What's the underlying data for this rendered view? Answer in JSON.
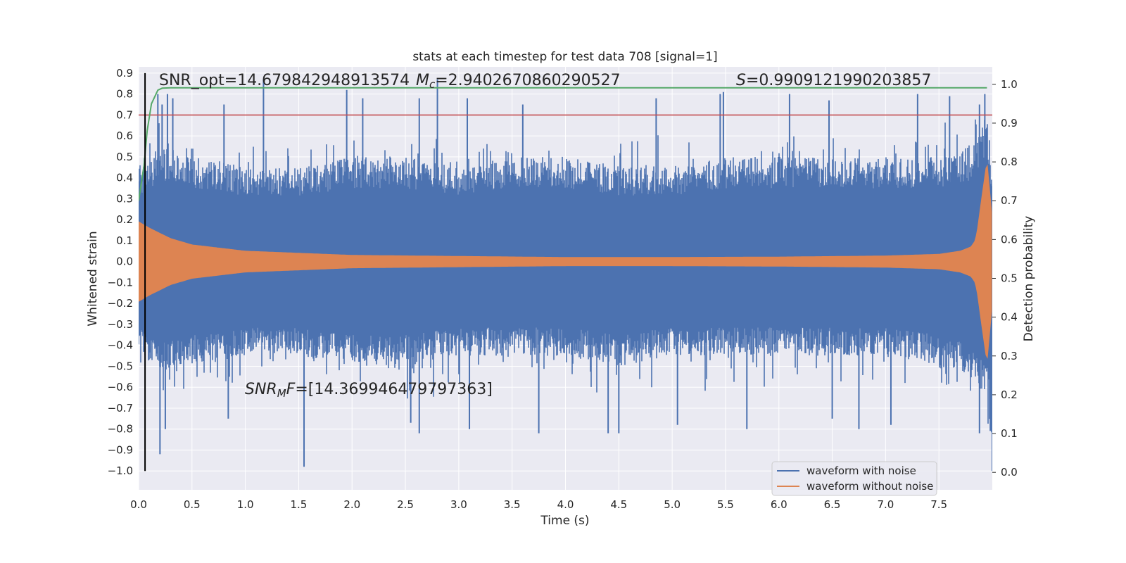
{
  "chart_data": {
    "type": "line",
    "title": "stats at each timestep for test data 708 [signal=1]",
    "xlabel": "Time (s)",
    "ylabel_left": "Whitened strain",
    "ylabel_right": "Detection probability",
    "xlim": [
      0.0,
      8.0
    ],
    "ylim_left": [
      -1.09,
      0.93
    ],
    "ylim_right": [
      -0.045,
      1.045
    ],
    "x_ticks": [
      "0.0",
      "0.5",
      "1.0",
      "1.5",
      "2.0",
      "2.5",
      "3.0",
      "3.5",
      "4.0",
      "4.5",
      "5.0",
      "5.5",
      "6.0",
      "6.5",
      "7.0",
      "7.5"
    ],
    "x_tick_values": [
      0.0,
      0.5,
      1.0,
      1.5,
      2.0,
      2.5,
      3.0,
      3.5,
      4.0,
      4.5,
      5.0,
      5.5,
      6.0,
      6.5,
      7.0,
      7.5
    ],
    "y_left_ticks": [
      "0.9",
      "0.8",
      "0.7",
      "0.6",
      "0.5",
      "0.4",
      "0.3",
      "0.2",
      "0.1",
      "0.0",
      "−0.1",
      "−0.2",
      "−0.3",
      "−0.4",
      "−0.5",
      "−0.6",
      "−0.7",
      "−0.8",
      "−0.9",
      "−1.0"
    ],
    "y_left_tick_values": [
      0.9,
      0.8,
      0.7,
      0.6,
      0.5,
      0.4,
      0.3,
      0.2,
      0.1,
      0.0,
      -0.1,
      -0.2,
      -0.3,
      -0.4,
      -0.5,
      -0.6,
      -0.7,
      -0.8,
      -0.9,
      -1.0
    ],
    "y_right_ticks": [
      "1.0",
      "0.9",
      "0.8",
      "0.7",
      "0.6",
      "0.5",
      "0.4",
      "0.3",
      "0.2",
      "0.1",
      "0.0"
    ],
    "y_right_tick_values": [
      1.0,
      0.9,
      0.8,
      0.7,
      0.6,
      0.5,
      0.4,
      0.3,
      0.2,
      0.1,
      0.0
    ],
    "grid": true,
    "legend_position": "bottom-right",
    "colors": {
      "noisy": "#4c72b0",
      "clean": "#dd8452",
      "probability": "#55a868",
      "threshold": "#c44e52",
      "marker": "#000000",
      "background": "#eaeaf2",
      "grid": "#ffffff"
    },
    "series": [
      {
        "name": "waveform with noise",
        "axis": "left",
        "envelope_x": [
          0.0,
          0.1,
          0.2,
          0.5,
          1.0,
          1.5,
          2.0,
          2.5,
          3.0,
          3.5,
          4.0,
          4.5,
          5.0,
          5.5,
          6.0,
          6.5,
          7.0,
          7.5,
          7.8,
          7.95,
          8.0
        ],
        "envelope_upper": [
          0.45,
          0.5,
          0.55,
          0.5,
          0.45,
          0.45,
          0.5,
          0.5,
          0.45,
          0.5,
          0.5,
          0.45,
          0.45,
          0.5,
          0.5,
          0.5,
          0.5,
          0.5,
          0.55,
          0.7,
          0.45
        ],
        "envelope_lower": [
          -0.45,
          -0.5,
          -0.55,
          -0.5,
          -0.45,
          -0.45,
          -0.5,
          -0.5,
          -0.45,
          -0.45,
          -0.45,
          -0.5,
          -0.45,
          -0.45,
          -0.45,
          -0.45,
          -0.45,
          -0.5,
          -0.55,
          -0.65,
          -1.0
        ],
        "peaks_x": [
          0.18,
          0.22,
          0.27,
          0.32,
          0.8,
          1.17,
          1.95,
          2.1,
          2.63,
          2.8,
          3.08,
          3.6,
          4.85,
          5.45,
          5.48,
          6.1,
          6.47,
          7.3,
          7.6,
          7.88,
          7.93
        ],
        "peaks_y": [
          0.8,
          0.75,
          0.8,
          0.78,
          0.75,
          0.87,
          0.82,
          0.78,
          0.78,
          0.87,
          0.78,
          0.75,
          0.78,
          0.8,
          0.81,
          0.8,
          0.77,
          0.8,
          0.79,
          0.75,
          0.8
        ],
        "troughs_x": [
          0.2,
          0.25,
          0.84,
          1.55,
          2.55,
          2.63,
          3.1,
          3.75,
          4.4,
          4.5,
          5.05,
          5.7,
          6.5,
          6.75,
          7.05,
          7.88,
          8.0
        ],
        "troughs_y": [
          -0.92,
          -0.8,
          -0.75,
          -0.98,
          -0.77,
          -0.82,
          -0.8,
          -0.82,
          -0.82,
          -0.82,
          -0.78,
          -0.8,
          -0.75,
          -0.8,
          -0.78,
          -0.82,
          -1.0
        ]
      },
      {
        "name": "waveform without noise",
        "axis": "left",
        "envelope_x": [
          0.0,
          0.1,
          0.3,
          0.5,
          1.0,
          2.0,
          3.0,
          4.0,
          5.0,
          6.0,
          7.0,
          7.5,
          7.7,
          7.8,
          7.84,
          7.86,
          7.9,
          7.95,
          8.0
        ],
        "envelope_amp": [
          0.19,
          0.16,
          0.11,
          0.08,
          0.05,
          0.03,
          0.025,
          0.02,
          0.02,
          0.022,
          0.027,
          0.035,
          0.05,
          0.07,
          0.1,
          0.15,
          0.3,
          0.48,
          0.2
        ]
      },
      {
        "name": "",
        "axis": "right",
        "x": [
          0.0,
          0.05,
          0.08,
          0.12,
          0.18,
          0.22,
          0.3,
          0.5,
          1.0,
          2.0,
          3.0,
          4.0,
          5.0,
          6.0,
          7.0,
          7.95
        ],
        "y": [
          0.7,
          0.79,
          0.88,
          0.95,
          0.985,
          0.99,
          0.991,
          0.991,
          0.991,
          0.991,
          0.991,
          0.991,
          0.991,
          0.991,
          0.991,
          0.991
        ]
      }
    ],
    "threshold": {
      "axis": "left",
      "y": 0.7
    },
    "vertical_marker": {
      "x": 0.06,
      "y_from": -1.0,
      "y_to": 0.9
    },
    "annotations": {
      "snr_opt": "SNR_opt=14.679842948913574",
      "mc_symbol": "M",
      "mc_sub": "c",
      "mc_value": "=2.9402670860290527",
      "s_symbol": "S",
      "s_value": "=0.9909121990203857",
      "snr_mf_symbol": "SNR",
      "snr_mf_sub": "M",
      "snr_mf_mid": "F",
      "snr_mf_value": "=[14.369946479797363]"
    }
  }
}
